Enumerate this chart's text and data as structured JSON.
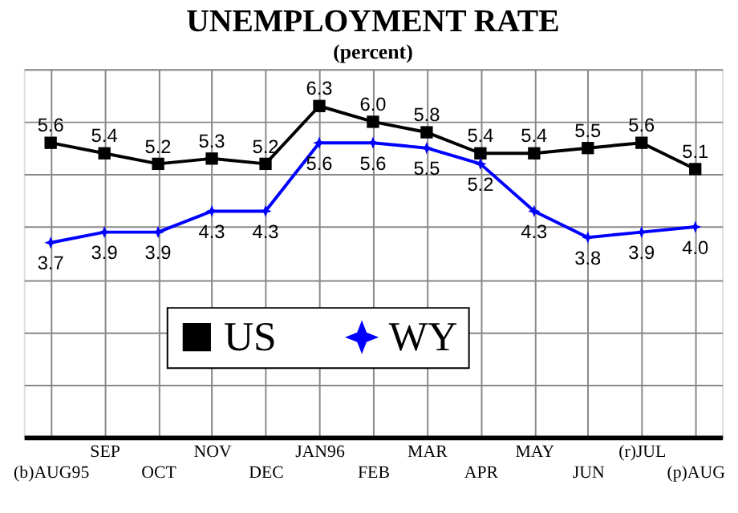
{
  "chart_data": {
    "type": "line",
    "title": "UNEMPLOYMENT RATE",
    "subtitle": "(percent)",
    "categories": [
      "(b)AUG95",
      "SEP",
      "OCT",
      "NOV",
      "DEC",
      "JAN96",
      "FEB",
      "MAR",
      "APR",
      "MAY",
      "JUN",
      "(r)JUL",
      "(p)AUG"
    ],
    "series": [
      {
        "name": "US",
        "color": "#000000",
        "marker": "square",
        "values": [
          5.6,
          5.4,
          5.2,
          5.3,
          5.2,
          6.3,
          6.0,
          5.8,
          5.4,
          5.4,
          5.5,
          5.6,
          5.1
        ],
        "value_labels": [
          "5.6",
          "5.4",
          "5.2",
          "5.3",
          "5.2",
          "6.3",
          "6.0",
          "5.8",
          "5.4",
          "5.4",
          "5.5",
          "5.6",
          "5.1"
        ]
      },
      {
        "name": "WY",
        "color": "#0000ff",
        "marker": "star",
        "values": [
          3.7,
          3.9,
          3.9,
          4.3,
          4.3,
          5.6,
          5.6,
          5.5,
          5.2,
          4.3,
          3.8,
          3.9,
          4.0
        ],
        "value_labels": [
          "3.7",
          "3.9",
          "3.9",
          "4.3",
          "4.3",
          "5.6",
          "5.6",
          "5.5",
          "5.2",
          "4.3",
          "3.8",
          "3.9",
          "4.0"
        ]
      }
    ],
    "ylim": [
      0,
      7
    ],
    "tick_labels": "x",
    "grid": true,
    "legend": "bottom",
    "line_style": "solid"
  }
}
